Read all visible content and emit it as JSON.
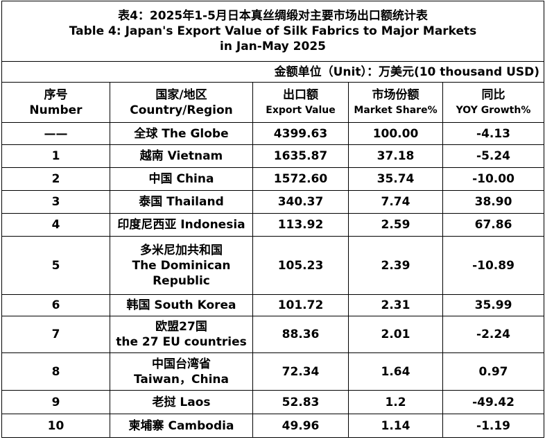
{
  "title": {
    "zh": "表4：2025年1-5月日本真丝绸缎对主要市场出口额统计表",
    "en_line1": "Table 4: Japan's Export Value of Silk Fabrics to Major Markets",
    "en_line2": "in Jan-May 2025"
  },
  "unit": "金额单位（Unit）：万美元(10 thousand USD)",
  "headers": {
    "number_zh": "序号",
    "number_en": "Number",
    "country_zh": "国家/地区",
    "country_en": "Country/Region",
    "export_zh": "出口额",
    "export_en": "Export Value",
    "share_zh": "市场份额",
    "share_en": "Market Share%",
    "growth_zh": "同比",
    "growth_en": "YOY Growth%"
  },
  "rows": [
    {
      "no": "——",
      "country": [
        "全球 The Globe"
      ],
      "value": "4399.63",
      "share": "100.00",
      "growth": "-4.13"
    },
    {
      "no": "1",
      "country": [
        "越南 Vietnam"
      ],
      "value": "1635.87",
      "share": "37.18",
      "growth": "-5.24"
    },
    {
      "no": "2",
      "country": [
        "中国 China"
      ],
      "value": "1572.60",
      "share": "35.74",
      "growth": "-10.00"
    },
    {
      "no": "3",
      "country": [
        "泰国 Thailand"
      ],
      "value": "340.37",
      "share": "7.74",
      "growth": "38.90"
    },
    {
      "no": "4",
      "country": [
        "印度尼西亚 Indonesia"
      ],
      "value": "113.92",
      "share": "2.59",
      "growth": "67.86"
    },
    {
      "no": "5",
      "country": [
        "多米尼加共和国",
        "The Dominican",
        "Republic"
      ],
      "value": "105.23",
      "share": "2.39",
      "growth": "-10.89"
    },
    {
      "no": "6",
      "country": [
        "韩国 South Korea"
      ],
      "value": "101.72",
      "share": "2.31",
      "growth": "35.99"
    },
    {
      "no": "7",
      "country": [
        "欧盟27国",
        "the 27 EU countries"
      ],
      "value": "88.36",
      "share": "2.01",
      "growth": "-2.24"
    },
    {
      "no": "8",
      "country": [
        "中国台湾省",
        "Taiwan，China"
      ],
      "value": "72.34",
      "share": "1.64",
      "growth": "0.97"
    },
    {
      "no": "9",
      "country": [
        "老挝 Laos"
      ],
      "value": "52.83",
      "share": "1.2",
      "growth": "-49.42"
    },
    {
      "no": "10",
      "country": [
        "柬埔寨 Cambodia"
      ],
      "value": "49.96",
      "share": "1.14",
      "growth": "-1.19"
    }
  ]
}
